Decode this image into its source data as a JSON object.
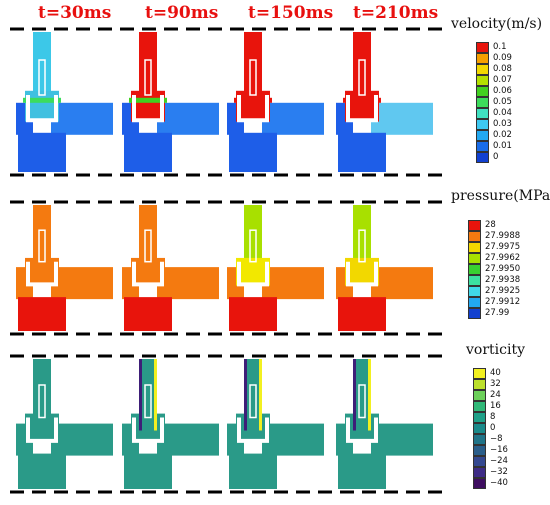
{
  "time_labels": [
    "t=30ms",
    "t=90ms",
    "t=150ms",
    "t=210ms"
  ],
  "panels": [
    {
      "title": "velocity(m/s)",
      "legend": [
        {
          "label": "0.1",
          "color": "#e8140c"
        },
        {
          "label": "0.09",
          "color": "#f6a000"
        },
        {
          "label": "0.08",
          "color": "#f2d800"
        },
        {
          "label": "0.07",
          "color": "#b4e000"
        },
        {
          "label": "0.06",
          "color": "#41d020"
        },
        {
          "label": "0.05",
          "color": "#3cdc5c"
        },
        {
          "label": "0.04",
          "color": "#40e0c0"
        },
        {
          "label": "0.03",
          "color": "#3ec8f0"
        },
        {
          "label": "0.02",
          "color": "#22a8f0"
        },
        {
          "label": "0.01",
          "color": "#1a6ce8"
        },
        {
          "label": "0",
          "color": "#1240d0"
        }
      ],
      "colors": {
        "bg": [
          "#1e5ee8",
          "#1e5ee8",
          "#1e5ee8",
          "#1e5ee8"
        ],
        "stem": [
          "#3cc8e8",
          "#e8140c",
          "#e8140c",
          "#e8140c"
        ],
        "core": [
          "#40c0e0",
          "#e8140c",
          "#e8140c",
          "#e8140c"
        ],
        "band": [
          "#3cdc5c",
          "#41d020",
          "#e8140c",
          "#e8140c"
        ],
        "right": [
          "#2a7ef0",
          "#2a7ef0",
          "#2a7ef0",
          "#60c8f0"
        ]
      }
    },
    {
      "title": "pressure(MPa)",
      "legend": [
        {
          "label": "28",
          "color": "#e8140c"
        },
        {
          "label": "27.9988",
          "color": "#f47a10"
        },
        {
          "label": "27.9975",
          "color": "#f2d800"
        },
        {
          "label": "27.9962",
          "color": "#a8e000"
        },
        {
          "label": "27.9950",
          "color": "#38d030"
        },
        {
          "label": "27.9938",
          "color": "#3ce0a0"
        },
        {
          "label": "27.9925",
          "color": "#40d8e8"
        },
        {
          "label": "27.9912",
          "color": "#22a8f0"
        },
        {
          "label": "27.99",
          "color": "#1240d0"
        }
      ],
      "colors": {
        "bg": [
          "#f47a10",
          "#f47a10",
          "#f47a10",
          "#f47a10"
        ],
        "stem": [
          "#f47a10",
          "#f47a10",
          "#a8e000",
          "#a8e000"
        ],
        "core": [
          "#f47a10",
          "#f47a10",
          "#f2e800",
          "#f2d800"
        ],
        "bottom": [
          "#e8140c",
          "#e8140c",
          "#e8140c",
          "#e8140c"
        ]
      }
    },
    {
      "title": "vorticity",
      "legend": [
        {
          "label": "40",
          "color": "#f2f020"
        },
        {
          "label": "32",
          "color": "#bce02c"
        },
        {
          "label": "24",
          "color": "#6cd05a"
        },
        {
          "label": "16",
          "color": "#30b878"
        },
        {
          "label": "8",
          "color": "#1ea088"
        },
        {
          "label": "0",
          "color": "#1a8a8a"
        },
        {
          "label": "−8",
          "color": "#207488"
        },
        {
          "label": "−16",
          "color": "#2a5e8a"
        },
        {
          "label": "−24",
          "color": "#344890"
        },
        {
          "label": "−32",
          "color": "#3e2c86"
        },
        {
          "label": "−40",
          "color": "#3e0e60"
        }
      ],
      "colors": {
        "bg": [
          "#2a9a88",
          "#2a9a88",
          "#2a9a88",
          "#2a9a88"
        ],
        "edge_dark": [
          "#2a9a88",
          "#3e1e78",
          "#3e1e78",
          "#3e1e78"
        ],
        "edge_light": [
          "#2a9a88",
          "#f2f020",
          "#f2f020",
          "#f2f020"
        ]
      }
    }
  ]
}
